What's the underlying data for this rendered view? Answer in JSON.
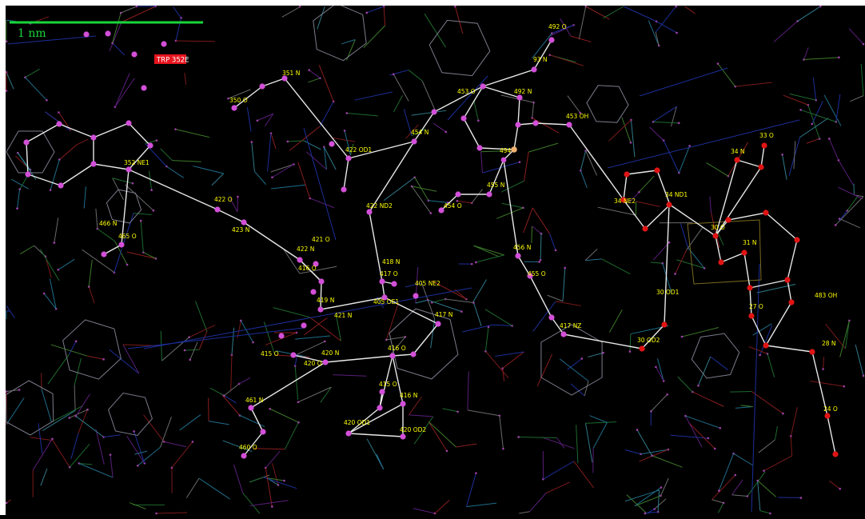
{
  "viewer": {
    "scale_bar_label": "1 nm",
    "selected_residue_label": "TRP 352E",
    "colors": {
      "background": "#000000",
      "scale_bar": "#19d63a",
      "selected_badge": "#e6141e",
      "label_text": "#ffff00",
      "bond_highlight": "#e8e8e8",
      "atom_carbon": "#d24fd8",
      "atom_oxygen": "#e01414",
      "atom_special": "#f0b070"
    },
    "atom_labels": [
      "492 O",
      "93 N",
      "351 N",
      "350 O",
      "453 O",
      "492 N",
      "453 OH",
      "33 O",
      "422 OD1",
      "454 N",
      "494",
      "34 N",
      "352 NE1",
      "34 NE2",
      "34 ND1",
      "422 O",
      "423 N",
      "422 ND2",
      "454 O",
      "455 N",
      "466 N",
      "465 O",
      "30 O",
      "31 N",
      "421 O",
      "422 N",
      "416 O",
      "418 N",
      "417 O",
      "405 NE2",
      "456 N",
      "455 O",
      "30 OD1",
      "419 N",
      "405 OE1",
      "483 OH",
      "27 O",
      "421 N",
      "417 N",
      "417 NZ",
      "30 OD2",
      "415 O",
      "416 O",
      "420 N",
      "420 O",
      "28 N",
      "415 O",
      "416 N",
      "461 N",
      "420 OD1",
      "420 OD2",
      "460 O",
      "24 O"
    ]
  }
}
